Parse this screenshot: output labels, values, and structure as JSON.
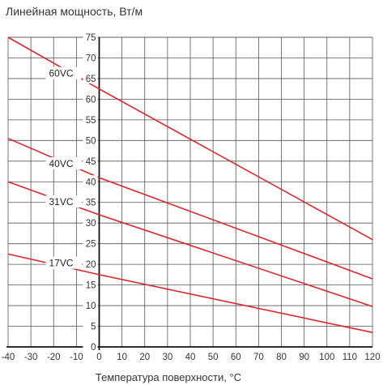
{
  "chart_data": {
    "type": "line",
    "title": "Линейная мощность, Вт/м",
    "xlabel": "Температура поверхности, °С",
    "ylabel": "",
    "xlim": [
      -40,
      120
    ],
    "ylim": [
      0,
      75
    ],
    "x_ticks": [
      "-40",
      "-30",
      "-20",
      "-10",
      "0",
      "10",
      "20",
      "30",
      "40",
      "50",
      "60",
      "70",
      "80",
      "90",
      "100",
      "110",
      "120"
    ],
    "y_ticks": [
      "0",
      "5",
      "10",
      "15",
      "20",
      "25",
      "30",
      "35",
      "40",
      "45",
      "50",
      "55",
      "60",
      "65",
      "70",
      "75"
    ],
    "grid": true,
    "line_color": "#d9272e",
    "series": [
      {
        "name": "60VC",
        "x": [
          -40,
          0,
          120
        ],
        "y": [
          75,
          62.5,
          26
        ]
      },
      {
        "name": "40VC",
        "x": [
          -40,
          0,
          120
        ],
        "y": [
          50.5,
          41,
          16.5
        ]
      },
      {
        "name": "31VC",
        "x": [
          -40,
          0,
          120
        ],
        "y": [
          40,
          32,
          9.8
        ]
      },
      {
        "name": "17VC",
        "x": [
          -40,
          0,
          120
        ],
        "y": [
          22.5,
          17.5,
          3.5
        ]
      }
    ]
  }
}
